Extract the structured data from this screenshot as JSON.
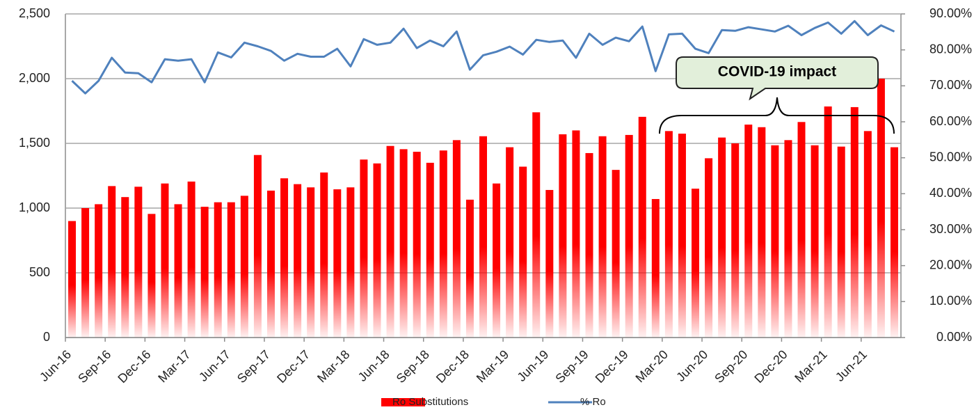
{
  "chart_data": {
    "type": "bar",
    "categories": [
      "Jun-16",
      null,
      null,
      "Sep-16",
      null,
      null,
      "Dec-16",
      null,
      null,
      "Mar-17",
      null,
      null,
      "Jun-17",
      null,
      null,
      "Sep-17",
      null,
      null,
      "Dec-17",
      null,
      null,
      "Mar-18",
      null,
      null,
      "Jun-18",
      null,
      null,
      "Sep-18",
      null,
      null,
      "Dec-18",
      null,
      null,
      "Mar-19",
      null,
      null,
      "Jun-19",
      null,
      null,
      "Sep-19",
      null,
      null,
      "Dec-19",
      null,
      null,
      "Mar-20",
      null,
      null,
      "Jun-20",
      null,
      null,
      "Sep-20",
      null,
      null,
      "Dec-20",
      null,
      null,
      "Mar-21",
      null,
      null,
      "Jun-21",
      null,
      null
    ],
    "series": [
      {
        "name": "Ro Substitutions",
        "type": "bar",
        "color": "#ff0000",
        "values": [
          900,
          1000,
          1030,
          1170,
          1085,
          1165,
          955,
          1190,
          1030,
          1205,
          1010,
          1045,
          1045,
          1095,
          1410,
          1135,
          1230,
          1185,
          1160,
          1275,
          1145,
          1160,
          1375,
          1345,
          1480,
          1455,
          1435,
          1350,
          1445,
          1525,
          1065,
          1555,
          1190,
          1470,
          1320,
          1740,
          1140,
          1570,
          1600,
          1425,
          1555,
          1295,
          1565,
          1705,
          1070,
          1595,
          1575,
          1150,
          1385,
          1545,
          1500,
          1645,
          1625,
          1485,
          1525,
          1665,
          1485,
          1785,
          1475,
          1780,
          1595,
          2000,
          1470
        ]
      },
      {
        "name": "% Ro",
        "type": "line",
        "color": "#4f81bd",
        "axis": "y2",
        "values": [
          71.4,
          67.9,
          71.4,
          77.8,
          73.7,
          73.5,
          71.0,
          77.4,
          77.0,
          77.4,
          71.0,
          79.3,
          77.9,
          82.0,
          81.0,
          79.7,
          77.0,
          78.9,
          78.1,
          78.1,
          80.3,
          75.4,
          83.0,
          81.4,
          82.0,
          85.9,
          80.5,
          82.6,
          81.0,
          85.1,
          74.5,
          78.5,
          79.5,
          80.9,
          78.7,
          82.8,
          82.2,
          82.6,
          77.8,
          84.5,
          81.4,
          83.4,
          82.4,
          86.5,
          74.1,
          84.3,
          84.5,
          80.3,
          79.1,
          85.5,
          85.3,
          86.3,
          85.7,
          85.1,
          86.7,
          84.1,
          86.1,
          87.6,
          84.5,
          88.0,
          84.1,
          86.8,
          85.1
        ]
      }
    ],
    "ylim": [
      0,
      2500
    ],
    "yticks": [
      0,
      500,
      {
        "value": 1000,
        "label": "1,000"
      },
      {
        "value": 1500,
        "label": "1,500"
      },
      {
        "value": 2000,
        "label": "2,000"
      },
      {
        "value": 2500,
        "label": "2,500"
      }
    ],
    "y2lim": [
      0,
      90
    ],
    "y2ticks": [
      {
        "value": 0,
        "label": "0.00%"
      },
      {
        "value": 10,
        "label": "10.00%"
      },
      {
        "value": 20,
        "label": "20.00%"
      },
      {
        "value": 30,
        "label": "30.00%"
      },
      {
        "value": 40,
        "label": "40.00%"
      },
      {
        "value": 50,
        "label": "50.00%"
      },
      {
        "value": 60,
        "label": "60.00%"
      },
      {
        "value": 70,
        "label": "70.00%"
      },
      {
        "value": 80,
        "label": "80.00%"
      },
      {
        "value": 90,
        "label": "90.00%"
      }
    ],
    "grid": true,
    "legend": "bottom",
    "annotations": [
      "COVID-19 impact"
    ]
  }
}
